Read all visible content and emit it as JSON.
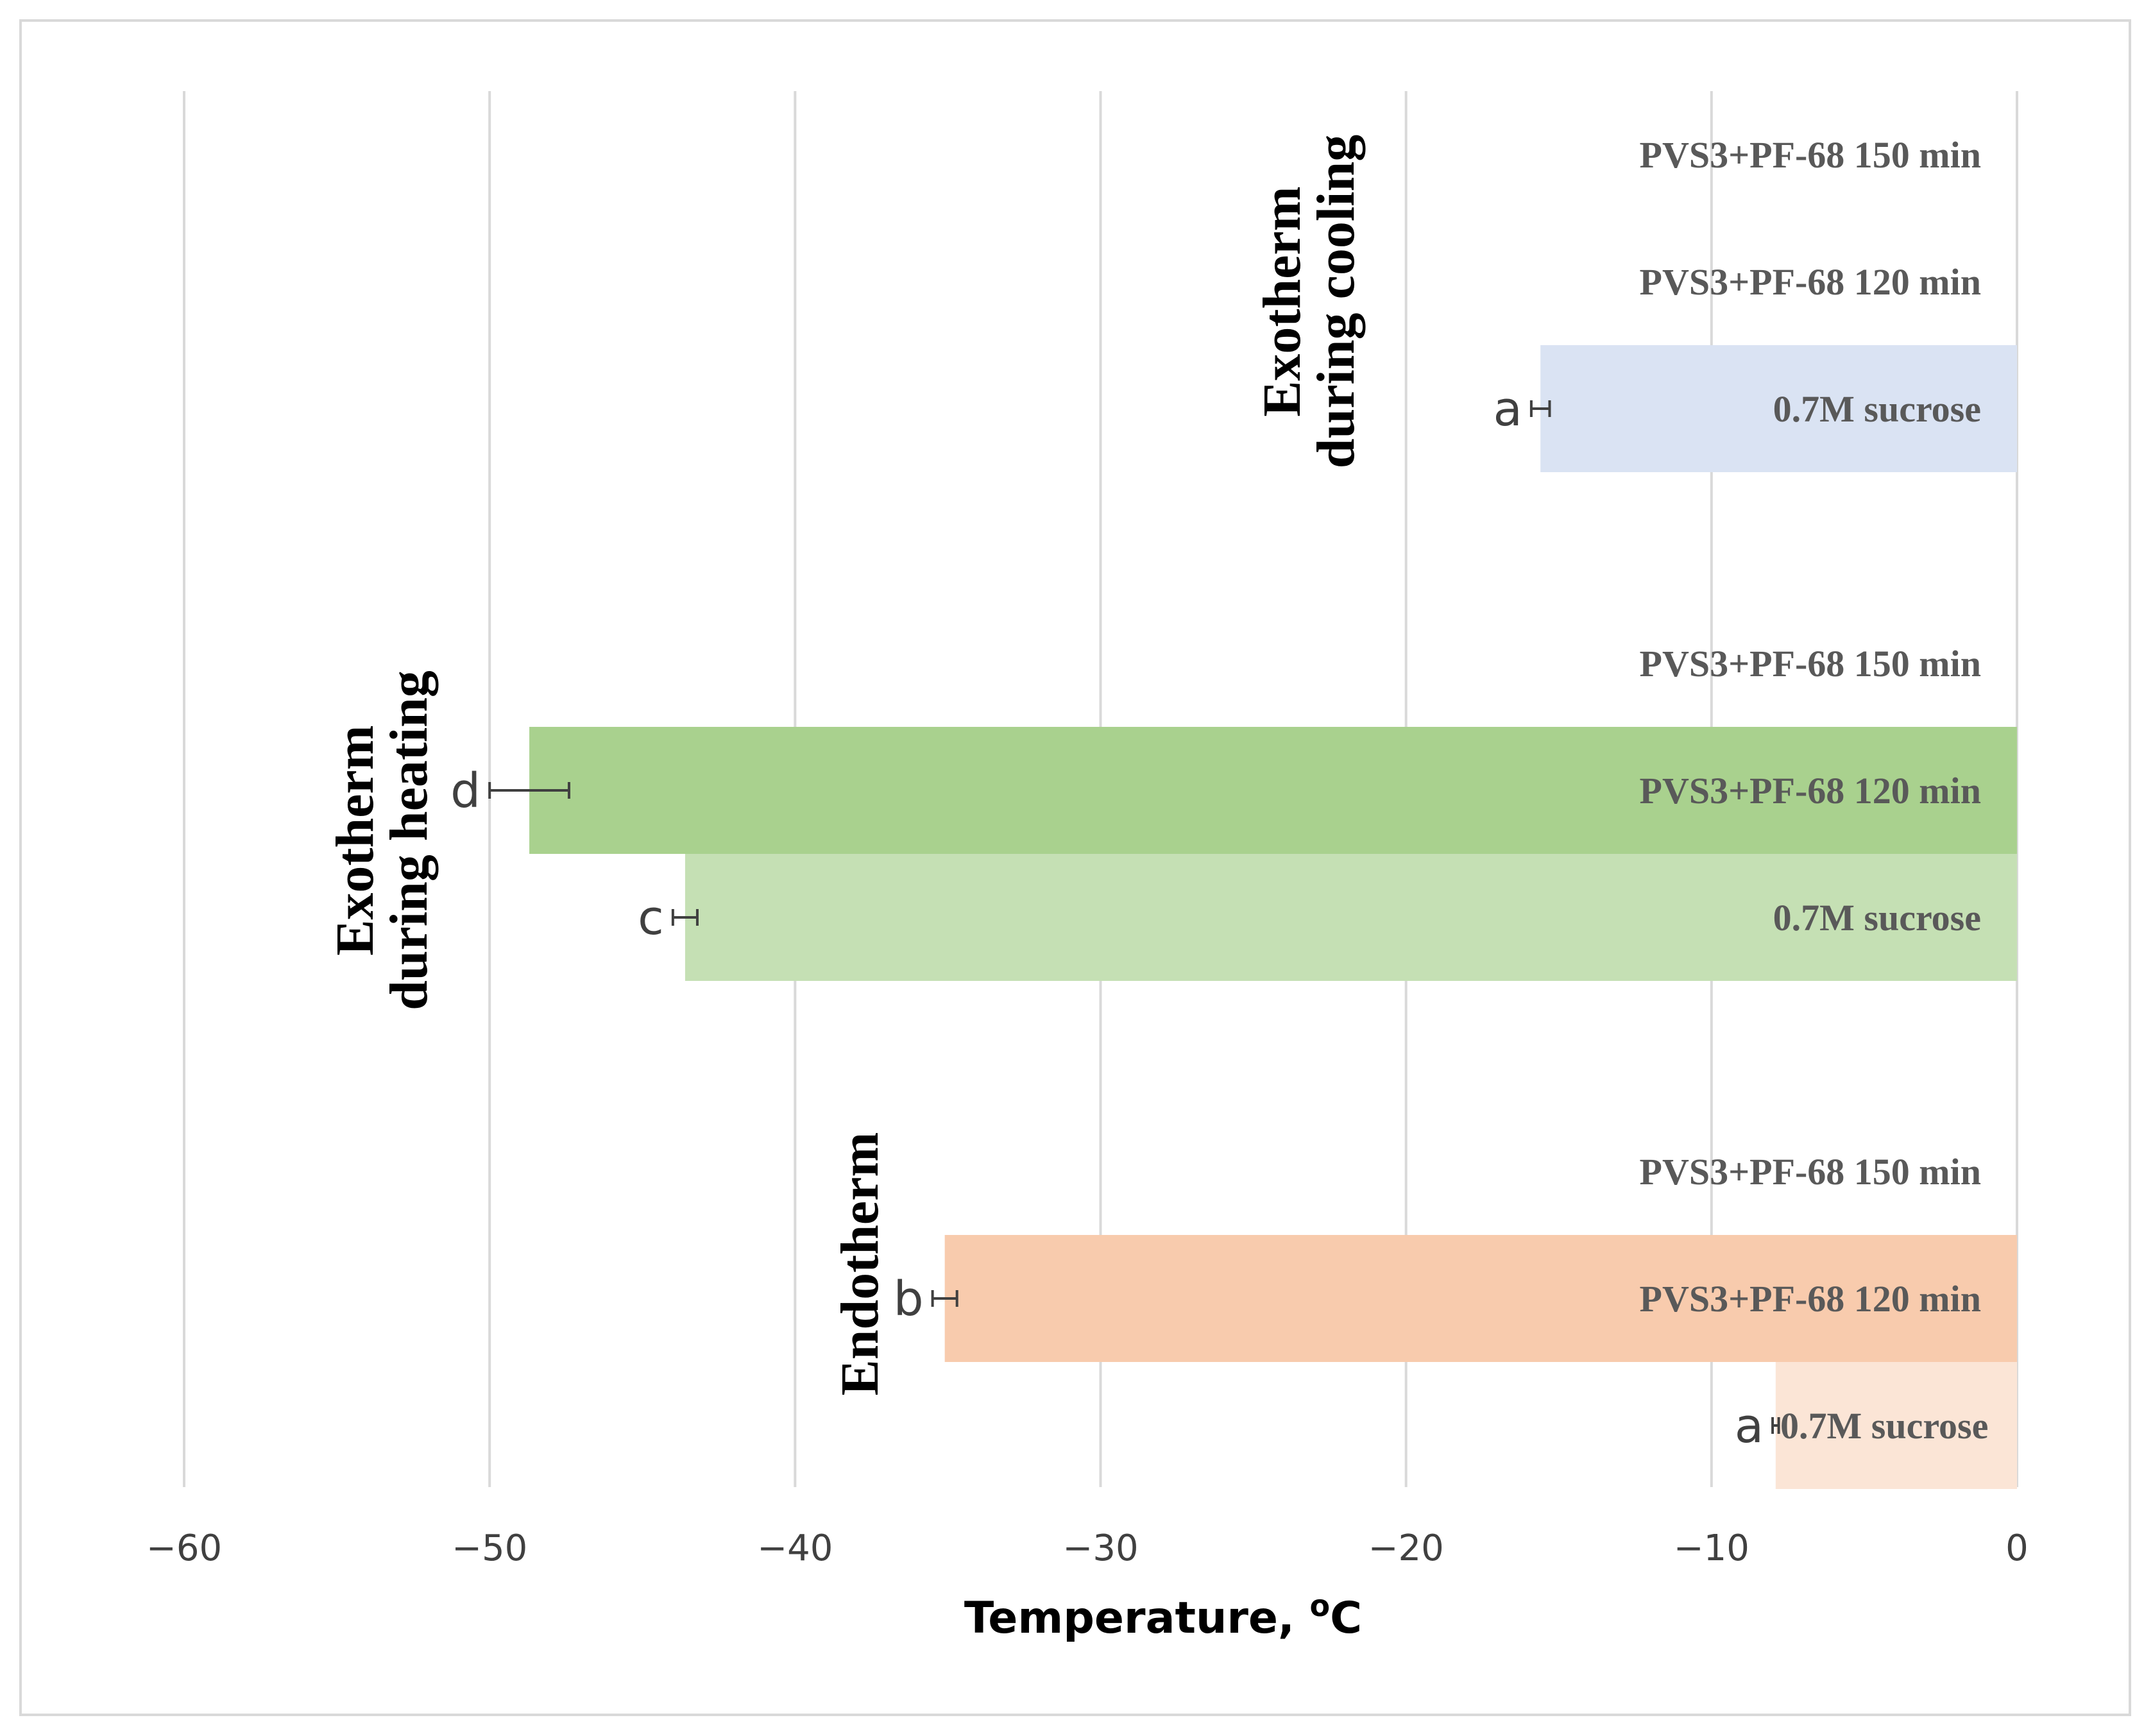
{
  "chart_data": {
    "type": "bar",
    "orientation": "horizontal",
    "xlabel": "Temperature, ",
    "xlabel_sup": "o",
    "xlabel_unit": "C",
    "xlim": [
      -60,
      0
    ],
    "xticks": [
      -60,
      -50,
      -40,
      -30,
      -20,
      -10,
      0
    ],
    "xtick_labels": [
      "−60",
      "−50",
      "−40",
      "−30",
      "−20",
      "−10",
      "0"
    ],
    "grid": true,
    "groups": [
      {
        "name": "Exotherm during cooling",
        "label_lines": [
          "Exotherm",
          "during cooling"
        ],
        "color_base": "#dae3f3",
        "bars": [
          {
            "label": "PVS3+PF-68 150 min",
            "value": null,
            "error": null,
            "letter": "",
            "color": "#dae3f3"
          },
          {
            "label": "PVS3+PF-68 120 min",
            "value": null,
            "error": null,
            "letter": "",
            "color": "#dae3f3"
          },
          {
            "label": "0.7M sucrose",
            "value": -15.6,
            "error": 0.3,
            "letter": "a",
            "color": "#dae3f3"
          }
        ]
      },
      {
        "name": "Exotherm during heating",
        "label_lines": [
          "Exotherm",
          "during heating"
        ],
        "color_base": "#a9d18e",
        "bars": [
          {
            "label": "PVS3+PF-68 150 min",
            "value": null,
            "error": null,
            "letter": "",
            "color": "#a9d18e"
          },
          {
            "label": "PVS3+PF-68 120 min",
            "value": -48.7,
            "error": 1.3,
            "letter": "d",
            "color": "#a9d18e"
          },
          {
            "label": "0.7M sucrose",
            "value": -43.6,
            "error": 0.4,
            "letter": "c",
            "color": "#c5e0b4"
          }
        ]
      },
      {
        "name": "Endotherm",
        "label_lines": [
          "Endotherm"
        ],
        "color_base": "#f8cbad",
        "bars": [
          {
            "label": "PVS3+PF-68 150 min",
            "value": null,
            "error": null,
            "letter": "",
            "color": "#f8cbad"
          },
          {
            "label": "PVS3+PF-68 120 min",
            "value": -35.1,
            "error": 0.4,
            "letter": "b",
            "color": "#f8cbad"
          },
          {
            "label": "0.7M sucrose",
            "value": -7.9,
            "error": 0.1,
            "letter": "a",
            "color": "#fbe5d6"
          }
        ]
      }
    ]
  }
}
